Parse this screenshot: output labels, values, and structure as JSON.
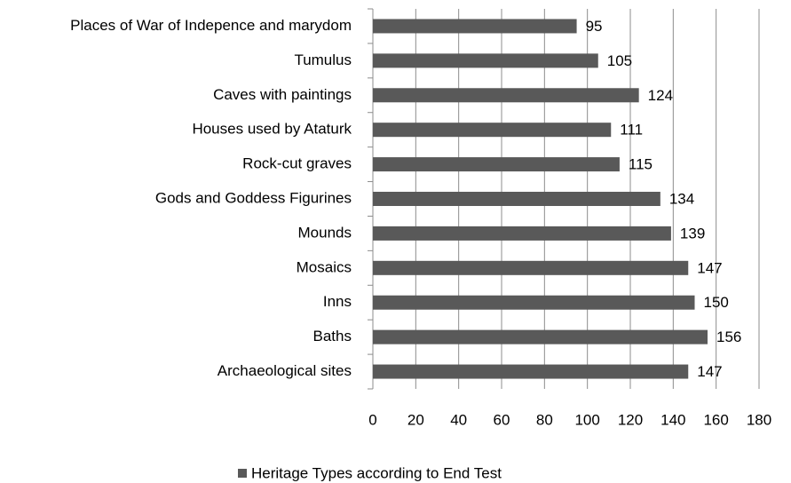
{
  "chart_data": {
    "type": "bar",
    "orientation": "horizontal",
    "categories": [
      "Places of War of Indepence and marydom",
      "Tumulus",
      "Caves with paintings",
      "Houses used by Ataturk",
      "Rock-cut graves",
      "Gods and Goddess Figurines",
      "Mounds",
      "Mosaics",
      "Inns",
      "Baths",
      "Archaeological sites"
    ],
    "series": [
      {
        "name": "Heritage Types according to End Test",
        "color": "#595959",
        "values": [
          95,
          105,
          124,
          111,
          115,
          134,
          139,
          147,
          150,
          156,
          147
        ]
      }
    ],
    "xlim": [
      0,
      180
    ],
    "xticks": [
      0,
      20,
      40,
      60,
      80,
      100,
      120,
      140,
      160,
      180
    ],
    "grid": true,
    "legend": "bottom"
  }
}
